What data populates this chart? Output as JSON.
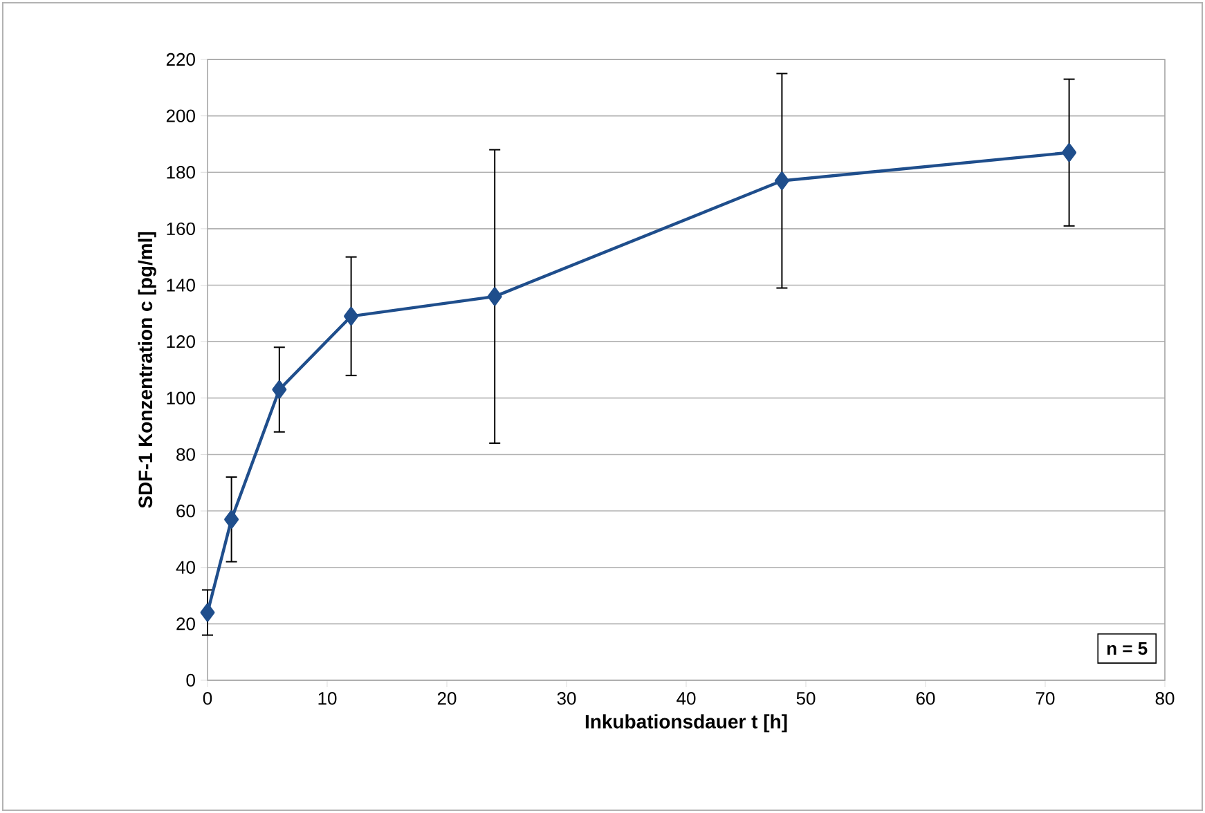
{
  "chart_data": {
    "type": "line",
    "xlabel": "Inkubationsdauer t [h]",
    "ylabel": "SDF-1 Konzentration c [pg/ml]",
    "x": [
      0,
      2,
      6,
      12,
      24,
      48,
      72
    ],
    "series": [
      {
        "color": "#1f4e8c",
        "values": [
          24,
          57,
          103,
          129,
          136,
          177,
          187
        ],
        "errors": [
          8,
          15,
          15,
          21,
          52,
          38,
          26
        ]
      }
    ],
    "xlim": [
      0,
      80
    ],
    "xticks": [
      0,
      10,
      20,
      30,
      40,
      50,
      60,
      70,
      80
    ],
    "ylim": [
      0,
      220
    ],
    "yticks": [
      0,
      20,
      40,
      60,
      80,
      100,
      120,
      140,
      160,
      180,
      200,
      220
    ],
    "grid": "y",
    "marker": "diamond",
    "line_style": "solid",
    "annotations": [
      "n = 5"
    ]
  }
}
